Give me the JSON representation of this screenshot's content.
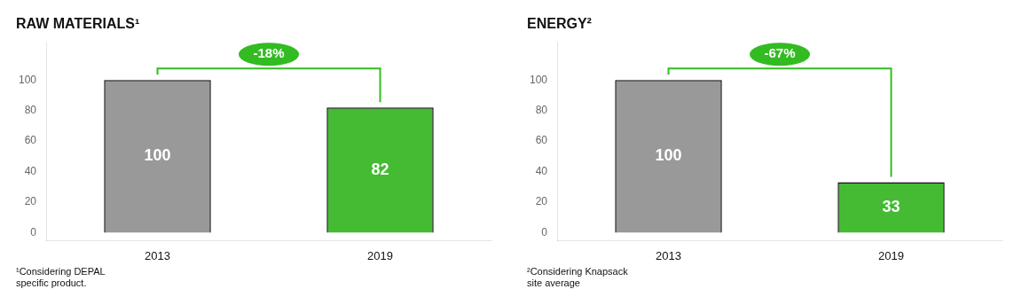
{
  "chart_data": [
    {
      "type": "bar",
      "title": "RAW MATERIALS¹",
      "subtitle": "¹Considering DEPAL\nspecific product.",
      "categories": [
        "2013",
        "2019"
      ],
      "values": [
        100,
        82
      ],
      "colors": [
        "#999999",
        "#44bb33"
      ],
      "ylim": [
        -5,
        125
      ],
      "yticks": [
        0,
        20,
        40,
        60,
        80,
        100
      ],
      "grid": false,
      "data_labels": true,
      "annotations": [
        {
          "text": "-18%",
          "color": "#33bb22"
        }
      ]
    },
    {
      "type": "bar",
      "title": "ENERGY²",
      "subtitle": "²Considering Knapsack\nsite average",
      "categories": [
        "2013",
        "2019"
      ],
      "values": [
        100,
        33
      ],
      "colors": [
        "#999999",
        "#44bb33"
      ],
      "ylim": [
        -5,
        125
      ],
      "yticks": [
        0,
        20,
        40,
        60,
        80,
        100
      ],
      "grid": false,
      "data_labels": true,
      "annotations": [
        {
          "text": "-67%",
          "color": "#33bb22"
        }
      ]
    }
  ]
}
